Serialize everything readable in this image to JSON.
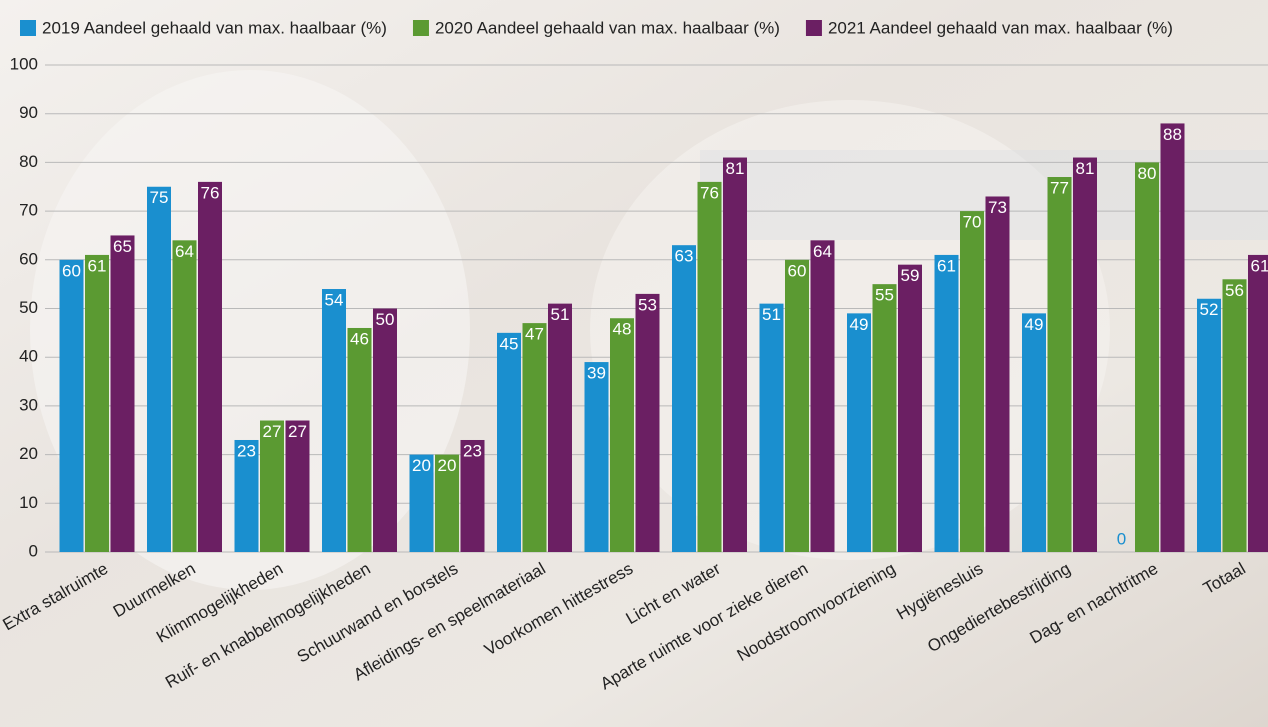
{
  "chart_data": {
    "type": "bar",
    "categories": [
      "Extra stalruimte",
      "Duurmelken",
      "Klimmogelijkheden",
      "Ruif- en knabbelmogelijkheden",
      "Schuurwand en borstels",
      "Afleidings- en speelmateriaal",
      "Voorkomen hittestress",
      "Licht en water",
      "Aparte ruimte voor zieke dieren",
      "Noodstroomvoorziening",
      "Hygiënesluis",
      "Ongediertebestrijding",
      "Dag- en nachtritme",
      "Totaal"
    ],
    "series": [
      {
        "name": "2019 Aandeel gehaald van max. haalbaar (%)",
        "color": "#1a8fcf",
        "values": [
          60,
          75,
          23,
          54,
          20,
          45,
          39,
          63,
          51,
          49,
          61,
          49,
          0,
          52
        ]
      },
      {
        "name": "2020 Aandeel gehaald van max. haalbaar (%)",
        "color": "#5b9a32",
        "values": [
          61,
          64,
          27,
          46,
          20,
          47,
          48,
          76,
          60,
          55,
          70,
          77,
          80,
          56
        ]
      },
      {
        "name": "2021 Aandeel gehaald van max. haalbaar (%)",
        "color": "#6b1f63",
        "values": [
          65,
          76,
          27,
          50,
          23,
          51,
          53,
          81,
          64,
          59,
          73,
          81,
          88,
          61
        ]
      }
    ],
    "ylim": [
      0,
      100
    ],
    "yticks": [
      0,
      10,
      20,
      30,
      40,
      50,
      60,
      70,
      80,
      90,
      100
    ],
    "grid": true,
    "legend": "top"
  }
}
